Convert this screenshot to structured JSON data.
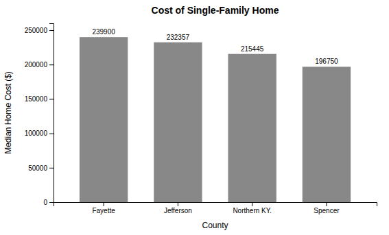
{
  "chart_data": {
    "type": "bar",
    "title": "Cost of Single-Family Home",
    "categories": [
      "Fayette",
      "Jefferson",
      "Northern KY.",
      "Spencer"
    ],
    "values": [
      239900,
      232357,
      215445,
      196750
    ],
    "color": "#888888",
    "xlabel": "County",
    "ylabel": "Median Home Cost ($)",
    "ylim": [
      0,
      260000
    ],
    "yticks": [
      0,
      50000,
      100000,
      150000,
      200000,
      250000
    ],
    "grid": false,
    "data_labels": true
  }
}
